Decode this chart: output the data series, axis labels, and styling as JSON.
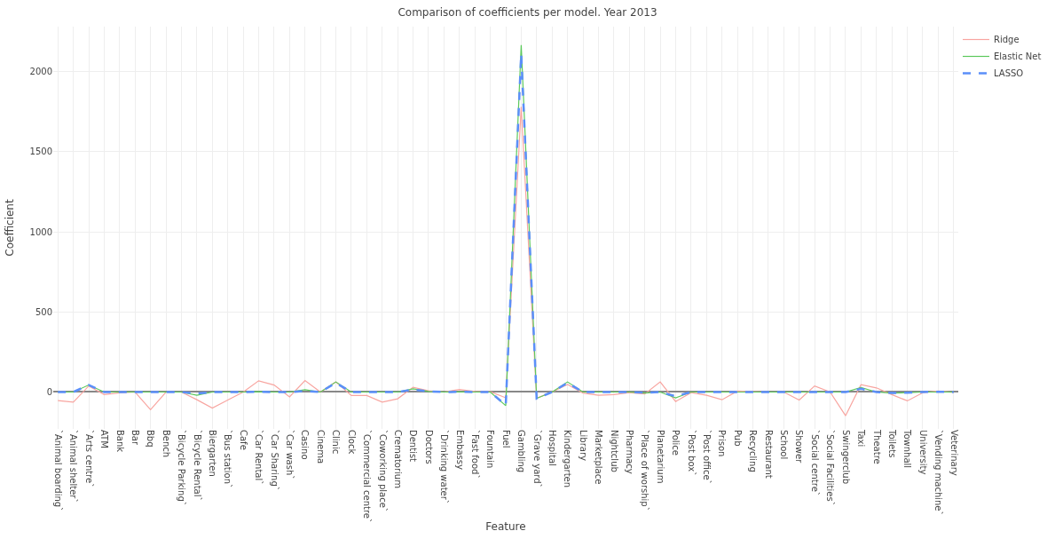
{
  "chart_data": {
    "type": "line",
    "title": "Comparison of coefficients per model. Year 2013",
    "xlabel": "Feature",
    "ylabel": "Coefficient",
    "categories": [
      "`Animal boarding`",
      "`Animal shelter`",
      "`Arts centre`",
      "ATM",
      "Bank",
      "Bar",
      "Bbq",
      "Bench",
      "`Bicycle Parking`",
      "`Bicycle Rental`",
      "Biergarten",
      "`Bus station`",
      "Cafe",
      "`Car Rental`",
      "`Car Sharing`",
      "`Car wash`",
      "Casino",
      "Cinema",
      "Clinic",
      "Clock",
      "`Commercial centre`",
      "`Coworking place`",
      "Crematorium",
      "Dentist",
      "Doctors",
      "`Drinking water`",
      "Embassy",
      "`Fast food`",
      "Fountain",
      "Fuel",
      "Gambling",
      "`Grave yard`",
      "Hospital",
      "Kindergarten",
      "Library",
      "Marketplace",
      "Nightclub",
      "Pharmacy",
      "`Place of worship`",
      "Planetarium",
      "Police",
      "`Post box`",
      "`Post office`",
      "Prison",
      "Pub",
      "Recycling",
      "Restaurant",
      "School",
      "Shower",
      "`Social centre`",
      "`Social Facilities`",
      "Swingerclub",
      "Taxi",
      "Theatre",
      "Toilets",
      "Townhall",
      "University",
      "`Vending machine`",
      "Veterinary"
    ],
    "series": [
      {
        "name": "Ridge",
        "color": "#f8a5a0",
        "line_style": "solid",
        "values": [
          -53,
          -63,
          38,
          -16,
          -5,
          0,
          -110,
          0,
          0,
          -48,
          -100,
          -50,
          0,
          70,
          44,
          -30,
          72,
          0,
          63,
          -22,
          -22,
          -63,
          -42,
          30,
          8,
          0,
          16,
          4,
          2,
          -36,
          1780,
          -38,
          0,
          47,
          -6,
          -20,
          -16,
          -4,
          -12,
          63,
          -59,
          -4,
          -20,
          -48,
          6,
          2,
          0,
          0,
          -50,
          38,
          0,
          -148,
          46,
          26,
          -16,
          -55,
          -4,
          6,
          -2
        ]
      },
      {
        "name": "Elastic Net",
        "color": "#5cc85c",
        "line_style": "solid",
        "values": [
          0,
          0,
          44,
          0,
          0,
          0,
          0,
          0,
          0,
          -20,
          0,
          0,
          0,
          2,
          0,
          0,
          14,
          0,
          63,
          0,
          0,
          0,
          0,
          20,
          3,
          0,
          1,
          0,
          0,
          -85,
          2165,
          -40,
          0,
          63,
          0,
          0,
          0,
          0,
          -6,
          0,
          -36,
          0,
          0,
          0,
          0,
          0,
          0,
          0,
          0,
          0,
          0,
          0,
          28,
          0,
          -6,
          -4,
          0,
          0,
          0
        ]
      },
      {
        "name": "LASSO",
        "color": "#5b8ff9",
        "line_style": "dashed",
        "values": [
          0,
          0,
          44,
          0,
          0,
          0,
          0,
          0,
          0,
          -10,
          0,
          0,
          0,
          2,
          0,
          0,
          6,
          0,
          57,
          0,
          0,
          0,
          0,
          16,
          3,
          0,
          1,
          0,
          0,
          -82,
          2110,
          -40,
          0,
          58,
          0,
          0,
          0,
          0,
          -4,
          0,
          -26,
          0,
          0,
          0,
          0,
          0,
          0,
          0,
          0,
          0,
          0,
          0,
          20,
          0,
          -6,
          -4,
          0,
          2,
          0
        ]
      }
    ],
    "ylim": [
      -230,
      2280
    ],
    "yticks": [
      0,
      500,
      1000,
      1500,
      2000
    ],
    "grid": true,
    "legend": "top right",
    "marker": "none"
  }
}
